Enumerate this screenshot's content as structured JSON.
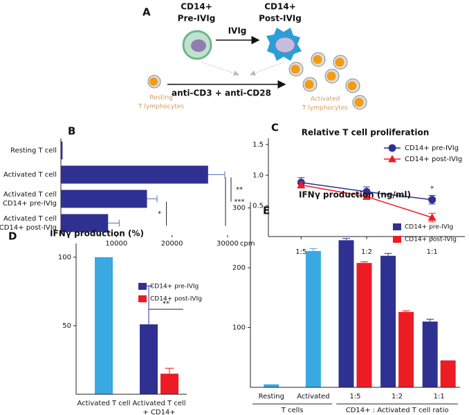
{
  "diagram": {
    "label": "A",
    "pre_cell": [
      "CD14+",
      "Pre-IVIg"
    ],
    "post_cell": [
      "CD14+",
      "Post-IVIg"
    ],
    "treatment": "IVIg",
    "stimulus": "anti-CD3 + anti-CD28",
    "resting": [
      "Resting",
      "T lymphocytes"
    ],
    "activated": [
      "Activated",
      "T lymphocytes"
    ]
  },
  "chart_data": [
    {
      "type": "hbar",
      "panel": "B",
      "categories": [
        "Resting T cell",
        "Activated T cell",
        [
          "Activated T cell",
          "+ CD14+ pre-IVIg"
        ],
        [
          "Activated T cell",
          "+ CD14+ post-IVIg"
        ]
      ],
      "values": [
        300,
        26500,
        15500,
        8500
      ],
      "errors": [
        null,
        3000,
        1800,
        2000
      ],
      "color": "#2e3192",
      "xlim": [
        0,
        32000
      ],
      "xticks": [
        10000,
        20000,
        30000
      ],
      "x_label": "cpm",
      "annotations": [
        "**",
        "***",
        "*"
      ]
    },
    {
      "type": "line",
      "panel": "C",
      "title": "Relative T cell proliferation",
      "categories": [
        "1:5",
        "1:2",
        "1:1"
      ],
      "series": [
        {
          "name": "CD14+ pre-IVIg",
          "color": "#2e3192",
          "marker": "circle",
          "values": [
            0.88,
            0.73,
            0.6
          ],
          "errors": [
            0.08,
            0.08,
            0.07
          ]
        },
        {
          "name": "CD14+ post-IVIg",
          "color": "#ed1c24",
          "marker": "triangle",
          "values": [
            0.84,
            0.65,
            0.31
          ],
          "errors": [
            0.05,
            0.03,
            0.07
          ]
        }
      ],
      "ylim": [
        0,
        1.6
      ],
      "yticks": [
        0.5,
        {
          "value": 1,
          "label": "1.0"
        },
        {
          "value": 1.5,
          "label": "1.5"
        }
      ],
      "legend": "upper right",
      "annotations": [
        "*"
      ]
    },
    {
      "type": "groupbar",
      "panel": "D",
      "title": "IFNγ production (%)",
      "categories": [
        "Activated T cell",
        [
          "Activated T cell",
          "+ CD14+"
        ]
      ],
      "series": [
        {
          "color": "#39a9e1",
          "values": [
            100,
            null
          ],
          "errors": [
            null,
            null
          ]
        },
        {
          "name": "CD14+ pre-IVIg",
          "color": "#2e3192",
          "values": [
            null,
            51
          ],
          "errors": [
            null,
            28
          ]
        },
        {
          "name": "CD14+ post-IVIg",
          "color": "#ed1c24",
          "values": [
            null,
            15
          ],
          "errors": [
            null,
            4
          ]
        }
      ],
      "ylim": [
        0,
        110
      ],
      "yticks": [
        50,
        100
      ],
      "legend": "upper right",
      "annotations": [
        "**"
      ]
    },
    {
      "type": "groupbar",
      "panel": "E",
      "title": "IFNγ production (ng/ml)",
      "categories": [
        "Resting",
        "Activated",
        "1:5",
        "1:2",
        "1:1"
      ],
      "groups": [
        "T cells",
        "CD14+ : Activated T cell ratio"
      ],
      "series": [
        {
          "color": "#39a9e1",
          "values": [
            5,
            228,
            null,
            null,
            null
          ],
          "errors": [
            null,
            4,
            null,
            null,
            null
          ]
        },
        {
          "name": "CD14+ pre-IVIg",
          "color": "#2e3192",
          "values": [
            null,
            null,
            246,
            220,
            110
          ],
          "errors": [
            null,
            null,
            3,
            4,
            4
          ]
        },
        {
          "name": "CD14+ post-IVIg",
          "color": "#ed1c24",
          "values": [
            null,
            null,
            208,
            126,
            45
          ],
          "errors": [
            null,
            null,
            2,
            2,
            null
          ]
        }
      ],
      "ylim": [
        0,
        310
      ],
      "yticks": [
        100,
        200,
        300
      ],
      "legend": "upper right"
    }
  ]
}
